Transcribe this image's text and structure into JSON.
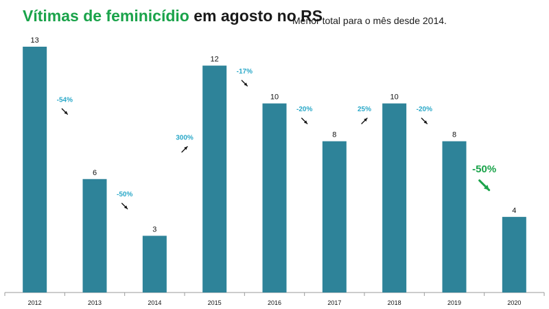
{
  "header": {
    "title_part1": "Vítimas de feminicídio",
    "title_part2": "em agosto no RS",
    "subtitle": "Menor total para o mês desde 2014."
  },
  "chart_data": {
    "type": "bar",
    "title": "Vítimas de feminicídio em agosto no RS",
    "subtitle": "Menor total para o mês desde 2014.",
    "xlabel": "",
    "ylabel": "",
    "ylim": [
      0,
      13
    ],
    "grid": false,
    "categories": [
      "2012",
      "2013",
      "2014",
      "2015",
      "2016",
      "2017",
      "2018",
      "2019",
      "2020"
    ],
    "values": [
      13,
      6,
      3,
      12,
      10,
      8,
      10,
      8,
      4
    ],
    "changes": [
      {
        "label": "-54%",
        "direction": "down",
        "emphasis": false
      },
      {
        "label": "-50%",
        "direction": "down",
        "emphasis": false
      },
      {
        "label": "300%",
        "direction": "up",
        "emphasis": false
      },
      {
        "label": "-17%",
        "direction": "down",
        "emphasis": false
      },
      {
        "label": "-20%",
        "direction": "down",
        "emphasis": false
      },
      {
        "label": "25%",
        "direction": "up",
        "emphasis": false
      },
      {
        "label": "-20%",
        "direction": "down",
        "emphasis": false
      },
      {
        "label": "-50%",
        "direction": "down",
        "emphasis": true
      }
    ],
    "colors": {
      "bar": "#2e8399",
      "change_label": "#2aa8c8",
      "emphasis": "#1aa34a",
      "arrow": "#111111",
      "axis": "#9a9a9a"
    }
  }
}
